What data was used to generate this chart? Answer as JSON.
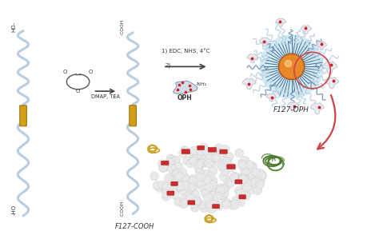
{
  "background_color": "#ffffff",
  "figsize": [
    4.74,
    2.99
  ],
  "dpi": 100,
  "labels": {
    "f127_cooh": "F127-COOH",
    "f127_oph": "F127-OPH",
    "dmap_tea": "DMAP, TEA",
    "step1": "1) EDC, NHS, 4°C",
    "step2": "2)",
    "oph": "OPH",
    "nh2": "-NH₂",
    "ho_top": "HO-",
    "ho_bottom": "-HO",
    "cooh_top": "-COOH",
    "cooh_bottom": "-COOH"
  },
  "colors": {
    "polymer_blue_light": "#b8cee0",
    "polymer_blue_dark": "#7090b8",
    "gold_block": "#d4a017",
    "gold_edge": "#a07010",
    "arrow_red": "#cc4444",
    "arrow_black": "#444444",
    "text_dark": "#333333",
    "red_blob": "#cc2222",
    "nanoparticle_orange": "#e8882a",
    "nanoparticle_orange_edge": "#b05010",
    "nanoparticle_highlight": "#ffdd99",
    "nanoparticle_cyan": "#80c8e0",
    "nanoparticle_dark_blue": "#204878",
    "enzyme_green": "#4a7a2a",
    "enzyme_yellow": "#c8a020",
    "white_sphere": "#e8e8e8",
    "white_sphere_edge": "#c8c8c8",
    "blue_chain": "#5060c0",
    "oph_blob_fill": "#d0d8e8",
    "oph_blob_edge": "#8090b0",
    "ring_color": "#555555"
  },
  "layout": {
    "xlim": [
      0,
      10
    ],
    "ylim": [
      0,
      6.3
    ]
  }
}
